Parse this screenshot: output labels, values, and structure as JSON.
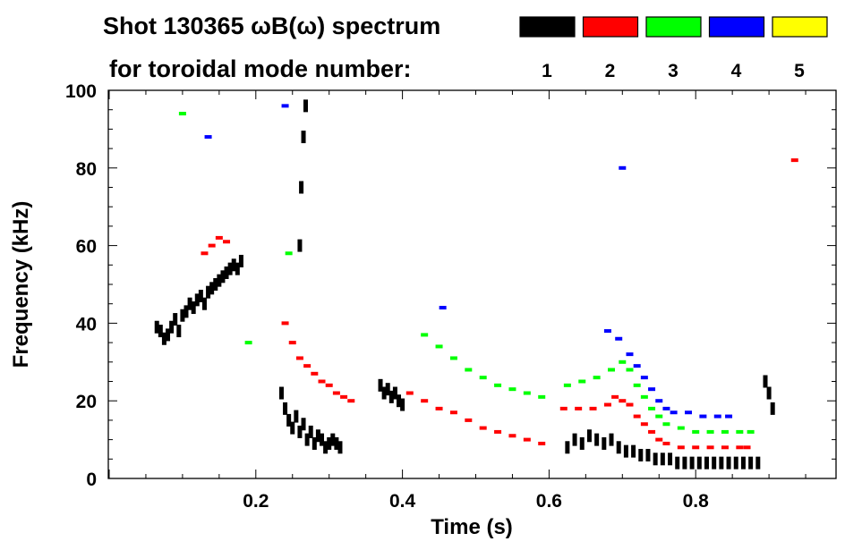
{
  "header": {
    "title": "Shot 130365 ωB(ω) spectrum",
    "legend_caption": "for toroidal mode number:"
  },
  "chart_data": {
    "type": "scatter",
    "title": "Shot 130365 ωB(ω) spectrum",
    "xlabel": "Time (s)",
    "ylabel": "Frequency (kHz)",
    "xlim": [
      0.0,
      1.0
    ],
    "ylim": [
      0,
      100
    ],
    "x_ticks": [
      0.2,
      0.4,
      0.6,
      0.8
    ],
    "x_tick_labels": [
      "0.2",
      "0.4",
      "0.6",
      "0.8"
    ],
    "y_ticks": [
      0,
      20,
      40,
      60,
      80,
      100
    ],
    "y_tick_labels": [
      "0",
      "20",
      "40",
      "60",
      "80",
      "100"
    ],
    "legend": {
      "placement": "top-right",
      "entries": [
        {
          "label": "1",
          "color": "#000000"
        },
        {
          "label": "2",
          "color": "#ff0000"
        },
        {
          "label": "3",
          "color": "#00ff00"
        },
        {
          "label": "4",
          "color": "#0000ff"
        },
        {
          "label": "5",
          "color": "#ffff00"
        }
      ]
    },
    "series": [
      {
        "name": "n=1",
        "color": "#000000",
        "points": [
          [
            0.065,
            39
          ],
          [
            0.07,
            38
          ],
          [
            0.075,
            36
          ],
          [
            0.08,
            37
          ],
          [
            0.085,
            39
          ],
          [
            0.09,
            41
          ],
          [
            0.095,
            38
          ],
          [
            0.1,
            42
          ],
          [
            0.105,
            43
          ],
          [
            0.11,
            45
          ],
          [
            0.115,
            44
          ],
          [
            0.12,
            46
          ],
          [
            0.125,
            47
          ],
          [
            0.13,
            45
          ],
          [
            0.135,
            48
          ],
          [
            0.14,
            49
          ],
          [
            0.145,
            50
          ],
          [
            0.15,
            51
          ],
          [
            0.155,
            52
          ],
          [
            0.16,
            53
          ],
          [
            0.165,
            54
          ],
          [
            0.17,
            55
          ],
          [
            0.175,
            54
          ],
          [
            0.18,
            56
          ],
          [
            0.235,
            22
          ],
          [
            0.24,
            18
          ],
          [
            0.245,
            15
          ],
          [
            0.25,
            13
          ],
          [
            0.255,
            16
          ],
          [
            0.26,
            12
          ],
          [
            0.265,
            14
          ],
          [
            0.27,
            10
          ],
          [
            0.275,
            12
          ],
          [
            0.28,
            9
          ],
          [
            0.285,
            11
          ],
          [
            0.29,
            10
          ],
          [
            0.295,
            8
          ],
          [
            0.3,
            9
          ],
          [
            0.305,
            10
          ],
          [
            0.31,
            9
          ],
          [
            0.315,
            8
          ],
          [
            0.26,
            60
          ],
          [
            0.262,
            75
          ],
          [
            0.265,
            88
          ],
          [
            0.268,
            96
          ],
          [
            0.37,
            24
          ],
          [
            0.375,
            22
          ],
          [
            0.38,
            23
          ],
          [
            0.385,
            21
          ],
          [
            0.39,
            22
          ],
          [
            0.395,
            20
          ],
          [
            0.4,
            19
          ],
          [
            0.625,
            8
          ],
          [
            0.635,
            10
          ],
          [
            0.645,
            9
          ],
          [
            0.655,
            11
          ],
          [
            0.665,
            10
          ],
          [
            0.675,
            9
          ],
          [
            0.685,
            10
          ],
          [
            0.695,
            8
          ],
          [
            0.705,
            7
          ],
          [
            0.715,
            7
          ],
          [
            0.725,
            6
          ],
          [
            0.735,
            6
          ],
          [
            0.745,
            5
          ],
          [
            0.755,
            5
          ],
          [
            0.765,
            5
          ],
          [
            0.775,
            4
          ],
          [
            0.785,
            4
          ],
          [
            0.795,
            4
          ],
          [
            0.805,
            4
          ],
          [
            0.815,
            4
          ],
          [
            0.825,
            4
          ],
          [
            0.835,
            4
          ],
          [
            0.845,
            4
          ],
          [
            0.855,
            4
          ],
          [
            0.865,
            4
          ],
          [
            0.875,
            4
          ],
          [
            0.885,
            4
          ],
          [
            0.895,
            25
          ],
          [
            0.9,
            22
          ],
          [
            0.905,
            18
          ]
        ]
      },
      {
        "name": "n=2",
        "color": "#ff0000",
        "points": [
          [
            0.13,
            58
          ],
          [
            0.14,
            60
          ],
          [
            0.15,
            62
          ],
          [
            0.16,
            61
          ],
          [
            0.24,
            40
          ],
          [
            0.25,
            35
          ],
          [
            0.26,
            31
          ],
          [
            0.27,
            29
          ],
          [
            0.28,
            27
          ],
          [
            0.29,
            25
          ],
          [
            0.3,
            24
          ],
          [
            0.31,
            22
          ],
          [
            0.32,
            21
          ],
          [
            0.33,
            20
          ],
          [
            0.41,
            22
          ],
          [
            0.43,
            20
          ],
          [
            0.45,
            18
          ],
          [
            0.47,
            17
          ],
          [
            0.49,
            15
          ],
          [
            0.51,
            13
          ],
          [
            0.53,
            12
          ],
          [
            0.55,
            11
          ],
          [
            0.57,
            10
          ],
          [
            0.59,
            9
          ],
          [
            0.62,
            18
          ],
          [
            0.64,
            18
          ],
          [
            0.66,
            18
          ],
          [
            0.68,
            19
          ],
          [
            0.69,
            21
          ],
          [
            0.7,
            20
          ],
          [
            0.71,
            19
          ],
          [
            0.72,
            16
          ],
          [
            0.73,
            14
          ],
          [
            0.74,
            12
          ],
          [
            0.75,
            10
          ],
          [
            0.76,
            9
          ],
          [
            0.78,
            8
          ],
          [
            0.8,
            8
          ],
          [
            0.82,
            8
          ],
          [
            0.84,
            8
          ],
          [
            0.86,
            8
          ],
          [
            0.87,
            8
          ],
          [
            0.935,
            82
          ]
        ]
      },
      {
        "name": "n=3",
        "color": "#00ff00",
        "points": [
          [
            0.1,
            94
          ],
          [
            0.19,
            35
          ],
          [
            0.245,
            58
          ],
          [
            0.43,
            37
          ],
          [
            0.45,
            34
          ],
          [
            0.47,
            31
          ],
          [
            0.49,
            28
          ],
          [
            0.51,
            26
          ],
          [
            0.53,
            24
          ],
          [
            0.55,
            23
          ],
          [
            0.57,
            22
          ],
          [
            0.59,
            21
          ],
          [
            0.625,
            24
          ],
          [
            0.645,
            25
          ],
          [
            0.665,
            26
          ],
          [
            0.685,
            28
          ],
          [
            0.7,
            30
          ],
          [
            0.71,
            28
          ],
          [
            0.72,
            24
          ],
          [
            0.73,
            21
          ],
          [
            0.74,
            18
          ],
          [
            0.75,
            16
          ],
          [
            0.76,
            14
          ],
          [
            0.78,
            13
          ],
          [
            0.8,
            12
          ],
          [
            0.82,
            12
          ],
          [
            0.84,
            12
          ],
          [
            0.86,
            12
          ],
          [
            0.875,
            12
          ]
        ]
      },
      {
        "name": "n=4",
        "color": "#0000ff",
        "points": [
          [
            0.135,
            88
          ],
          [
            0.24,
            96
          ],
          [
            0.455,
            44
          ],
          [
            0.68,
            38
          ],
          [
            0.695,
            36
          ],
          [
            0.71,
            32
          ],
          [
            0.72,
            29
          ],
          [
            0.73,
            26
          ],
          [
            0.74,
            23
          ],
          [
            0.75,
            20
          ],
          [
            0.76,
            18
          ],
          [
            0.77,
            17
          ],
          [
            0.79,
            17
          ],
          [
            0.81,
            16
          ],
          [
            0.83,
            16
          ],
          [
            0.845,
            16
          ],
          [
            0.7,
            80
          ]
        ]
      },
      {
        "name": "n=5",
        "color": "#ffff00",
        "points": []
      }
    ]
  }
}
